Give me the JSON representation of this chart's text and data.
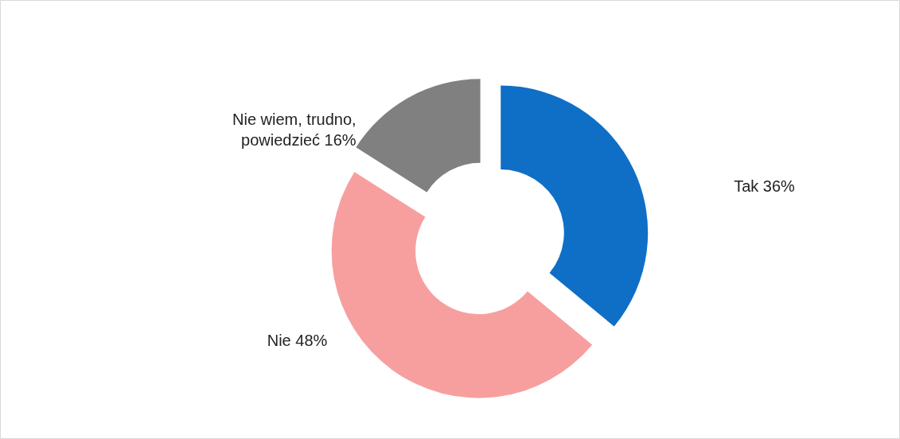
{
  "chart_data": {
    "type": "donut",
    "categories": [
      "Tak",
      "Nie",
      "Nie wiem, trudno, powiedzieć"
    ],
    "values": [
      36,
      48,
      16
    ],
    "value_labels": [
      "36%",
      "48%",
      "16%"
    ],
    "colors": [
      "#0f6fc6",
      "#f79f9f",
      "#808080"
    ]
  }
}
